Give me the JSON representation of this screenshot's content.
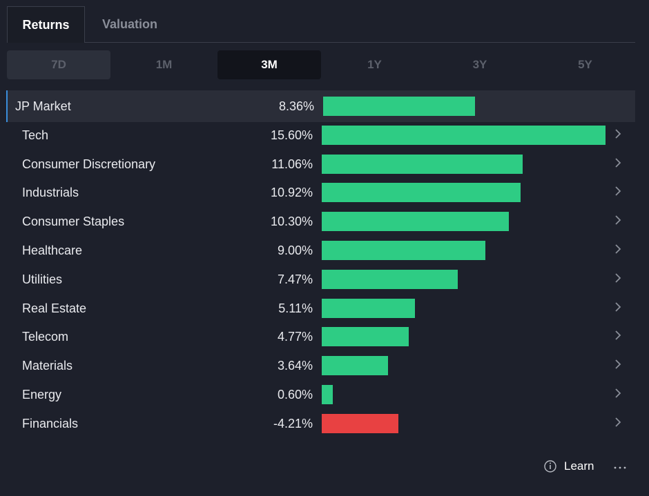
{
  "tabs": [
    "Returns",
    "Valuation"
  ],
  "active_tab": 0,
  "periods": [
    "7D",
    "1M",
    "3M",
    "1Y",
    "3Y",
    "5Y"
  ],
  "active_period": 2,
  "chart_data": {
    "type": "bar",
    "orientation": "horizontal",
    "categories": [
      "JP Market",
      "Tech",
      "Consumer Discretionary",
      "Industrials",
      "Consumer Staples",
      "Healthcare",
      "Utilities",
      "Real Estate",
      "Telecom",
      "Materials",
      "Energy",
      "Financials"
    ],
    "values": [
      8.36,
      15.6,
      11.06,
      10.92,
      10.3,
      9.0,
      7.47,
      5.11,
      4.77,
      3.64,
      0.6,
      -4.21
    ],
    "value_labels": [
      "8.36%",
      "15.60%",
      "11.06%",
      "10.92%",
      "10.30%",
      "9.00%",
      "7.47%",
      "5.11%",
      "4.77%",
      "3.64%",
      "0.60%",
      "-4.21%"
    ],
    "colors": {
      "positive": "#2ecc84",
      "negative": "#e84142"
    }
  },
  "footer": {
    "learn": "Learn"
  }
}
